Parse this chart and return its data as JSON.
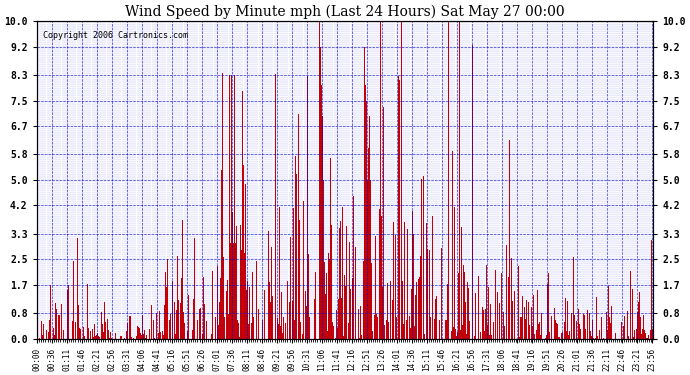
{
  "title": "Wind Speed by Minute mph (Last 24 Hours) Sat May 27 00:00",
  "copyright": "Copyright 2006 Cartronics.com",
  "ylabel_ticks": [
    0.0,
    0.8,
    1.7,
    2.5,
    3.3,
    4.2,
    5.0,
    5.8,
    6.7,
    7.5,
    8.3,
    9.2,
    10.0
  ],
  "bar_color": "#cc0000",
  "bg_color": "#ffffff",
  "grid_color": "#0000cc",
  "axis_label_color": "#000000",
  "xlim": [
    0,
    1440
  ],
  "ylim": [
    0.0,
    10.0
  ],
  "fig_width": 6.9,
  "fig_height": 3.75,
  "dpi": 100
}
